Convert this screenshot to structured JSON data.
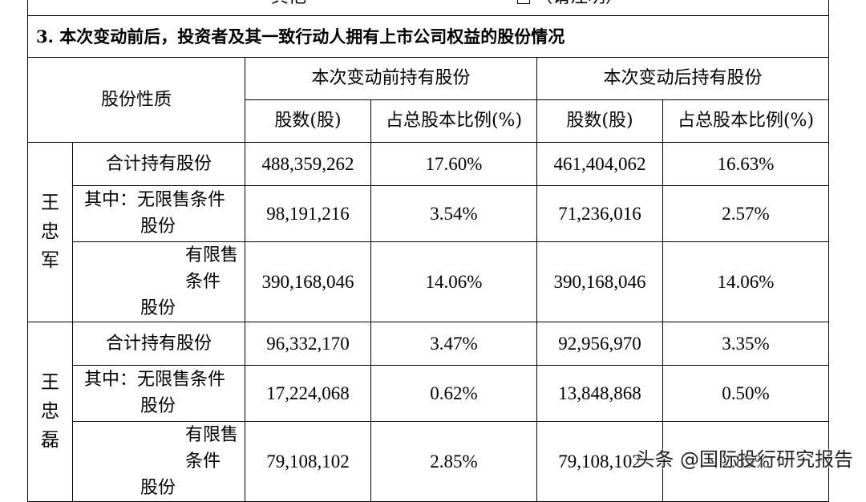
{
  "top_fragment": {
    "other_label": "其他",
    "please_specify": "（请注明）"
  },
  "section": {
    "title": "3.  本次变动前后，投资者及其一致行动人拥有上市公司权益的股份情况"
  },
  "table": {
    "header": {
      "share_nature": "股份性质",
      "before_group": "本次变动前持有股份",
      "after_group": "本次变动后持有股份",
      "shares_col": "股数(股)",
      "ratio_col": "占总股本比例(%)"
    },
    "holders": [
      {
        "name_chars": [
          "王",
          "忠",
          "军"
        ],
        "rows": [
          {
            "label_lines": [
              "合计持有股份"
            ],
            "before_shares": "488,359,262",
            "before_ratio": "17.60%",
            "after_shares": "461,404,062",
            "after_ratio": "16.63%"
          },
          {
            "label_lines": [
              "其中：无限售条件",
              "股份"
            ],
            "before_shares": "98,191,216",
            "before_ratio": "3.54%",
            "after_shares": "71,236,016",
            "after_ratio": "2.57%"
          },
          {
            "label_lines": [
              "有限售条件",
              "股份"
            ],
            "before_shares": "390,168,046",
            "before_ratio": "14.06%",
            "after_shares": "390,168,046",
            "after_ratio": "14.06%"
          }
        ]
      },
      {
        "name_chars": [
          "王",
          "忠",
          "磊"
        ],
        "rows": [
          {
            "label_lines": [
              "合计持有股份"
            ],
            "before_shares": "96,332,170",
            "before_ratio": "3.47%",
            "after_shares": "92,956,970",
            "after_ratio": "3.35%"
          },
          {
            "label_lines": [
              "其中：无限售条件",
              "股份"
            ],
            "before_shares": "17,224,068",
            "before_ratio": "0.62%",
            "after_shares": "13,848,868",
            "after_ratio": "0.50%"
          },
          {
            "label_lines": [
              "有限售条件",
              "股份"
            ],
            "before_shares": "79,108,102",
            "before_ratio": "2.85%",
            "after_shares": "79,108,102",
            "after_ratio": "2.85%"
          }
        ]
      }
    ]
  },
  "watermark": {
    "text": "头条 @国际投行研究报告"
  }
}
